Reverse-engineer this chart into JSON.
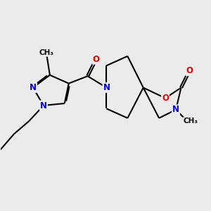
{
  "bg_color": "#ebebeb",
  "atom_colors": {
    "N": "#0000ee",
    "O": "#ee0000",
    "C": "#000000"
  },
  "bond_color": "#000000",
  "bond_width": 1.5,
  "dbo": 0.055,
  "font_size": 8.5,
  "xlim": [
    0,
    10
  ],
  "ylim": [
    0,
    10
  ]
}
